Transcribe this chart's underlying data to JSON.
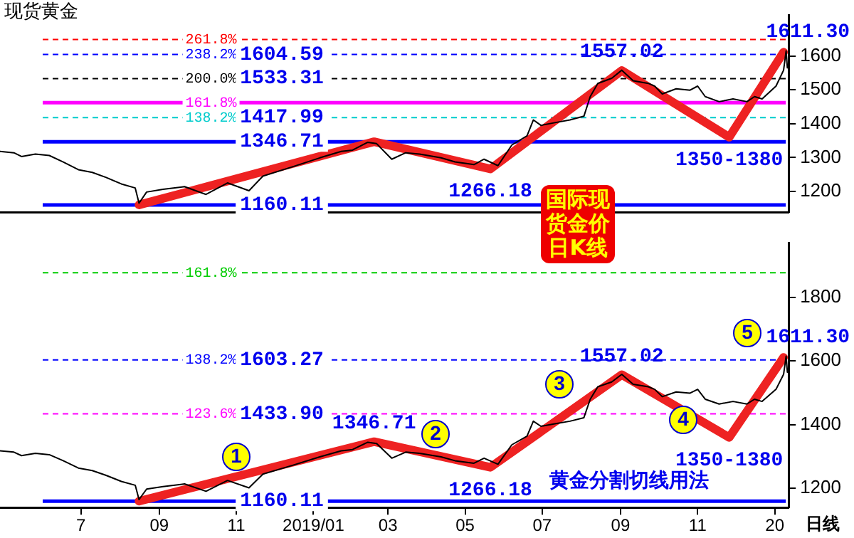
{
  "chart_data": [
    {
      "type": "line",
      "title": "现货黄金",
      "xlim": [
        "2018-04-28",
        "2020-01-12"
      ],
      "ylim": [
        1138,
        1720
      ],
      "yticks": [
        1200,
        1300,
        1400,
        1500,
        1600
      ],
      "tick_labels": "y",
      "grid": false,
      "legend": false,
      "marker": "none",
      "series": [
        {
          "color": "#000000",
          "x": [
            "2018-04-28",
            "2018-05-09",
            "2018-05-15",
            "2018-05-26",
            "2018-06-06",
            "2018-06-17",
            "2018-06-29",
            "2018-07-10",
            "2018-07-21",
            "2018-08-02",
            "2018-08-13",
            "2018-08-16",
            "2018-08-22",
            "2018-09-04",
            "2018-09-21",
            "2018-10-08",
            "2018-10-25",
            "2018-11-11",
            "2018-11-22",
            "2018-12-15",
            "2019-01-06",
            "2019-01-23",
            "2019-02-01",
            "2019-02-13",
            "2019-02-20",
            "2019-03-04",
            "2019-03-15",
            "2019-03-26",
            "2019-04-12",
            "2019-04-23",
            "2019-05-08",
            "2019-05-16",
            "2019-05-27",
            "2019-06-07",
            "2019-06-19",
            "2019-06-24",
            "2019-06-30",
            "2019-07-11",
            "2019-07-23",
            "2019-08-03",
            "2019-08-08",
            "2019-08-14",
            "2019-08-25",
            "2019-09-02",
            "2019-09-11",
            "2019-09-23",
            "2019-09-28",
            "2019-10-04",
            "2019-10-15",
            "2019-10-26",
            "2019-11-01",
            "2019-11-07",
            "2019-11-18",
            "2019-11-29",
            "2019-12-10",
            "2019-12-16",
            "2019-12-22",
            "2020-01-02",
            "2020-01-08",
            "2020-01-10",
            "2020-01-11"
          ],
          "values": [
            1318,
            1314,
            1303,
            1310,
            1306,
            1287,
            1264,
            1256,
            1241,
            1222,
            1210,
            1165,
            1198,
            1206,
            1214,
            1191,
            1225,
            1202,
            1245,
            1272,
            1299,
            1318,
            1322,
            1345,
            1341,
            1295,
            1314,
            1310,
            1299,
            1287,
            1279,
            1295,
            1276,
            1337,
            1364,
            1411,
            1395,
            1403,
            1411,
            1422,
            1480,
            1519,
            1534,
            1558,
            1527,
            1519,
            1511,
            1488,
            1503,
            1499,
            1511,
            1480,
            1465,
            1473,
            1465,
            1480,
            1473,
            1511,
            1558,
            1615,
            1565
          ]
        },
        {
          "color": "#ee2222",
          "x": [
            "2018-08-16",
            "2019-02-18",
            "2019-05-21",
            "2019-09-02",
            "2019-11-26",
            "2020-01-08"
          ],
          "values": [
            1160.11,
            1346.71,
            1266.18,
            1557.02,
            1360,
            1611.3
          ]
        }
      ],
      "ref_lines": [
        {
          "axis": "y",
          "value": 1648.9,
          "color": "#ff0000",
          "line_style": "dashed"
        },
        {
          "axis": "y",
          "value": 1604.59,
          "label": "1604.59",
          "color": "#0000ff",
          "line_style": "dashed"
        },
        {
          "axis": "y",
          "value": 1533.31,
          "label": "1533.31",
          "color": "#000000",
          "line_style": "dashed"
        },
        {
          "axis": "y",
          "value": 1462,
          "color": "#ff00ff",
          "line_style": "solid"
        },
        {
          "axis": "y",
          "value": 1417.99,
          "label": "1417.99",
          "color": "#00cccc",
          "line_style": "dashed"
        },
        {
          "axis": "y",
          "value": 1346.71,
          "label": "1346.71",
          "color": "#0000ff",
          "line_style": "solid"
        },
        {
          "axis": "y",
          "value": 1160.11,
          "label": "1160.11",
          "color": "#0000ff",
          "line_style": "solid"
        }
      ],
      "annotations": [
        "国际现货金价日K线",
        {
          "text": "261.8%",
          "x": "2018-10-12",
          "y": 1648.9
        },
        {
          "text": "238.2%",
          "x": "2018-10-12",
          "y": 1604.59
        },
        {
          "text": "200.0%",
          "x": "2018-10-12",
          "y": 1533.31
        },
        {
          "text": "161.8%",
          "x": "2018-10-12",
          "y": 1462
        },
        {
          "text": "138.2%",
          "x": "2018-10-12",
          "y": 1417.99
        },
        {
          "text": "1266.18",
          "x": "2019-05-21",
          "y": 1266.18
        },
        {
          "text": "1557.02",
          "x": "2019-09-02",
          "y": 1557.02
        },
        {
          "text": "1611.30",
          "x": "2020-01-08",
          "y": 1611.3
        },
        {
          "text": "1350-1380",
          "x": "2019-11-26",
          "y": 1360
        }
      ]
    },
    {
      "type": "line",
      "xlim": [
        "2018-04-28",
        "2020-01-12"
      ],
      "ylim": [
        1140,
        1970
      ],
      "yticks": [
        1200,
        1400,
        1600,
        1800
      ],
      "xticks": [
        {
          "value": "2018-07-01",
          "label": "7"
        },
        {
          "value": "2018-09-01",
          "label": "09"
        },
        {
          "value": "2018-11-01",
          "label": "11"
        },
        {
          "value": "2019-01-01",
          "label": "2019/01"
        },
        {
          "value": "2019-03-01",
          "label": "03"
        },
        {
          "value": "2019-05-01",
          "label": "05"
        },
        {
          "value": "2019-07-01",
          "label": "07"
        },
        {
          "value": "2019-09-01",
          "label": "09"
        },
        {
          "value": "2019-11-01",
          "label": "11"
        },
        {
          "value": "2020-01-01",
          "label": "20"
        }
      ],
      "grid": false,
      "legend": false,
      "marker": "none",
      "series": [
        {
          "color": "#000000",
          "x": [
            "2018-04-28",
            "2018-05-09",
            "2018-05-15",
            "2018-05-26",
            "2018-06-06",
            "2018-06-17",
            "2018-06-29",
            "2018-07-10",
            "2018-07-21",
            "2018-08-02",
            "2018-08-13",
            "2018-08-16",
            "2018-08-22",
            "2018-09-04",
            "2018-09-21",
            "2018-10-08",
            "2018-10-25",
            "2018-11-11",
            "2018-11-22",
            "2018-12-15",
            "2019-01-06",
            "2019-01-23",
            "2019-02-01",
            "2019-02-13",
            "2019-02-20",
            "2019-03-04",
            "2019-03-15",
            "2019-03-26",
            "2019-04-12",
            "2019-04-23",
            "2019-05-08",
            "2019-05-16",
            "2019-05-27",
            "2019-06-07",
            "2019-06-19",
            "2019-06-24",
            "2019-06-30",
            "2019-07-11",
            "2019-07-23",
            "2019-08-03",
            "2019-08-08",
            "2019-08-14",
            "2019-08-25",
            "2019-09-02",
            "2019-09-11",
            "2019-09-23",
            "2019-09-28",
            "2019-10-04",
            "2019-10-15",
            "2019-10-26",
            "2019-11-01",
            "2019-11-07",
            "2019-11-18",
            "2019-11-29",
            "2019-12-10",
            "2019-12-16",
            "2019-12-22",
            "2020-01-02",
            "2020-01-08",
            "2020-01-10",
            "2020-01-11"
          ],
          "values": [
            1318,
            1314,
            1303,
            1310,
            1306,
            1287,
            1264,
            1256,
            1241,
            1222,
            1210,
            1165,
            1198,
            1206,
            1214,
            1191,
            1225,
            1202,
            1245,
            1272,
            1299,
            1318,
            1322,
            1345,
            1341,
            1295,
            1314,
            1310,
            1299,
            1287,
            1279,
            1295,
            1276,
            1337,
            1364,
            1411,
            1395,
            1403,
            1411,
            1422,
            1480,
            1519,
            1534,
            1558,
            1527,
            1519,
            1511,
            1488,
            1503,
            1499,
            1511,
            1480,
            1465,
            1473,
            1465,
            1480,
            1473,
            1511,
            1558,
            1615,
            1565
          ]
        },
        {
          "color": "#ee2222",
          "x": [
            "2018-08-16",
            "2019-02-18",
            "2019-05-21",
            "2019-09-02",
            "2019-11-26",
            "2020-01-08"
          ],
          "values": [
            1160.11,
            1346.71,
            1266.18,
            1557.02,
            1360,
            1611.3
          ]
        }
      ],
      "ref_lines": [
        {
          "axis": "y",
          "value": 1877,
          "color": "#00cc00",
          "line_style": "dashed"
        },
        {
          "axis": "y",
          "value": 1603.27,
          "label": "1603.27",
          "color": "#0000ff",
          "line_style": "dashed"
        },
        {
          "axis": "y",
          "value": 1433.9,
          "label": "1433.90",
          "color": "#ff00ff",
          "line_style": "dashed"
        },
        {
          "axis": "y",
          "value": 1160.11,
          "label": "1160.11",
          "color": "#0000ff",
          "line_style": "solid"
        }
      ],
      "annotations": [
        "黄金分割切线用法",
        "日线",
        "1",
        "2",
        "3",
        "4",
        "5",
        {
          "text": "161.8%",
          "x": "2018-10-12",
          "y": 1877
        },
        {
          "text": "138.2%",
          "x": "2018-10-12",
          "y": 1603.27
        },
        {
          "text": "123.6%",
          "x": "2018-10-12",
          "y": 1433.9
        },
        {
          "text": "1346.71",
          "x": "2019-02-18",
          "y": 1346.71
        },
        {
          "text": "1266.18",
          "x": "2019-05-21",
          "y": 1266.18
        },
        {
          "text": "1557.02",
          "x": "2019-09-02",
          "y": 1557.02
        },
        {
          "text": "1350-1380",
          "x": "2019-11-26",
          "y": 1360
        },
        {
          "text": "1611.30",
          "x": "2020-01-08",
          "y": 1611.3
        }
      ]
    }
  ]
}
